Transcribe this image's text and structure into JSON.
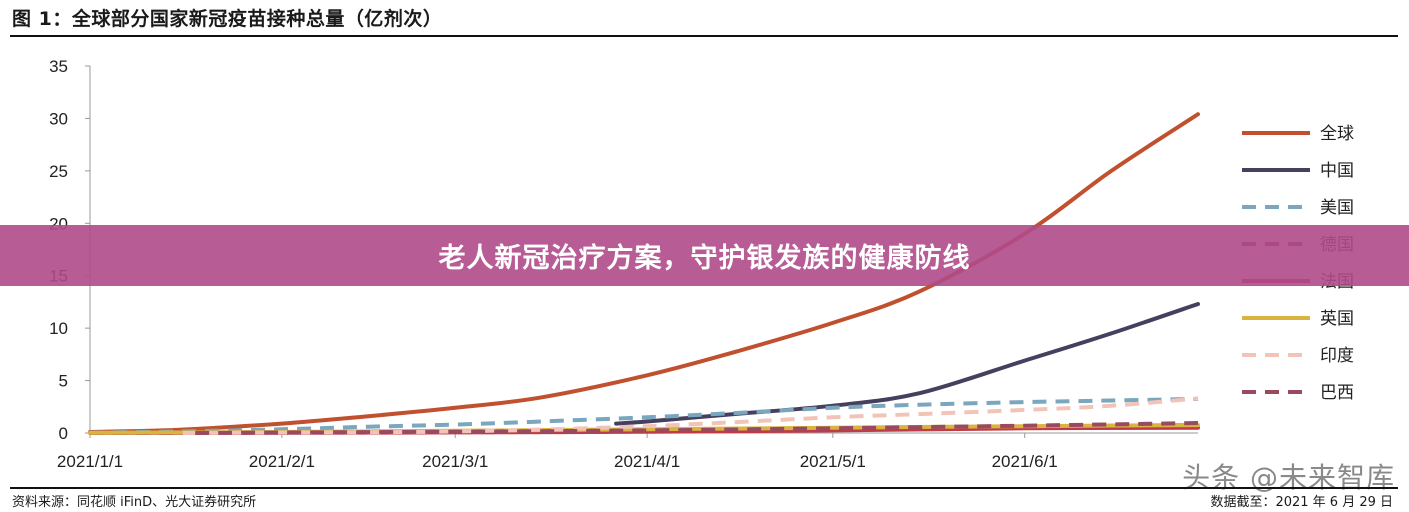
{
  "title": "图 1：全球部分国家新冠疫苗接种总量（亿剂次）",
  "banner": "老人新冠治疗方案，守护银发族的健康防线",
  "source": "资料来源：同花顺 iFinD、光大证券研究所",
  "data_date": "数据截至：2021 年 6 月 29 日",
  "watermark": "头条 @未来智库",
  "chart_data": {
    "type": "line",
    "title": "图 1：全球部分国家新冠疫苗接种总量（亿剂次）",
    "xlabel": "",
    "ylabel": "",
    "ylim": [
      0,
      35
    ],
    "yticks": [
      "0",
      "5",
      "10",
      "15",
      "20",
      "25",
      "30",
      "35"
    ],
    "xlim": [
      "2021-01-01",
      "2021-06-29"
    ],
    "xticks": [
      {
        "label": "2021/1/1",
        "date": "2021-01-01"
      },
      {
        "label": "2021/2/1",
        "date": "2021-02-01"
      },
      {
        "label": "2021/3/1",
        "date": "2021-03-01"
      },
      {
        "label": "2021/4/1",
        "date": "2021-04-01"
      },
      {
        "label": "2021/5/1",
        "date": "2021-05-01"
      },
      {
        "label": "2021/6/1",
        "date": "2021-06-01"
      }
    ],
    "grid": false,
    "legend_position": "right",
    "series": [
      {
        "name": "全球",
        "color": "#c0502e",
        "style": "solid",
        "points": [
          [
            "2021-01-01",
            0.1
          ],
          [
            "2021-01-15",
            0.3
          ],
          [
            "2021-02-01",
            0.9
          ],
          [
            "2021-02-15",
            1.6
          ],
          [
            "2021-03-01",
            2.4
          ],
          [
            "2021-03-15",
            3.4
          ],
          [
            "2021-04-01",
            5.5
          ],
          [
            "2021-04-15",
            7.7
          ],
          [
            "2021-05-01",
            10.5
          ],
          [
            "2021-05-15",
            13.5
          ],
          [
            "2021-06-01",
            19.0
          ],
          [
            "2021-06-15",
            25.0
          ],
          [
            "2021-06-29",
            30.4
          ]
        ]
      },
      {
        "name": "中国",
        "color": "#46405e",
        "style": "solid",
        "points": [
          [
            "2021-03-27",
            0.9
          ],
          [
            "2021-04-01",
            1.1
          ],
          [
            "2021-04-15",
            1.8
          ],
          [
            "2021-05-01",
            2.6
          ],
          [
            "2021-05-15",
            3.8
          ],
          [
            "2021-06-01",
            6.9
          ],
          [
            "2021-06-15",
            9.5
          ],
          [
            "2021-06-29",
            12.3
          ]
        ]
      },
      {
        "name": "美国",
        "color": "#7aa6be",
        "style": "dashed",
        "points": [
          [
            "2021-01-01",
            0.05
          ],
          [
            "2021-01-15",
            0.15
          ],
          [
            "2021-02-01",
            0.35
          ],
          [
            "2021-02-15",
            0.6
          ],
          [
            "2021-03-01",
            0.8
          ],
          [
            "2021-03-15",
            1.1
          ],
          [
            "2021-04-01",
            1.5
          ],
          [
            "2021-04-15",
            1.9
          ],
          [
            "2021-05-01",
            2.4
          ],
          [
            "2021-05-15",
            2.7
          ],
          [
            "2021-06-01",
            2.95
          ],
          [
            "2021-06-15",
            3.1
          ],
          [
            "2021-06-29",
            3.25
          ]
        ]
      },
      {
        "name": "德国",
        "color": "#7b3a5e",
        "style": "dashed",
        "points": [
          [
            "2021-01-01",
            0.01
          ],
          [
            "2021-02-01",
            0.03
          ],
          [
            "2021-03-01",
            0.08
          ],
          [
            "2021-04-01",
            0.15
          ],
          [
            "2021-05-01",
            0.35
          ],
          [
            "2021-06-01",
            0.6
          ],
          [
            "2021-06-29",
            0.75
          ]
        ]
      },
      {
        "name": "法国",
        "color": "#c23a48",
        "style": "solid",
        "points": [
          [
            "2021-01-01",
            0.01
          ],
          [
            "2021-02-01",
            0.02
          ],
          [
            "2021-03-01",
            0.06
          ],
          [
            "2021-04-01",
            0.12
          ],
          [
            "2021-05-01",
            0.25
          ],
          [
            "2021-06-01",
            0.45
          ],
          [
            "2021-06-29",
            0.5
          ]
        ]
      },
      {
        "name": "英国",
        "color": "#d8b440",
        "style": "solid",
        "points": [
          [
            "2021-01-01",
            0.02
          ],
          [
            "2021-02-01",
            0.1
          ],
          [
            "2021-03-01",
            0.22
          ],
          [
            "2021-04-01",
            0.35
          ],
          [
            "2021-05-01",
            0.5
          ],
          [
            "2021-06-01",
            0.65
          ],
          [
            "2021-06-29",
            0.75
          ]
        ]
      },
      {
        "name": "印度",
        "color": "#f2c4b8",
        "style": "dashed",
        "points": [
          [
            "2021-01-16",
            0.0
          ],
          [
            "2021-02-01",
            0.04
          ],
          [
            "2021-03-01",
            0.15
          ],
          [
            "2021-04-01",
            0.65
          ],
          [
            "2021-05-01",
            1.5
          ],
          [
            "2021-05-15",
            1.8
          ],
          [
            "2021-06-01",
            2.2
          ],
          [
            "2021-06-15",
            2.6
          ],
          [
            "2021-06-29",
            3.3
          ]
        ]
      },
      {
        "name": "巴西",
        "color": "#9a4a5e",
        "style": "dashed",
        "points": [
          [
            "2021-01-18",
            0.0
          ],
          [
            "2021-02-01",
            0.05
          ],
          [
            "2021-03-01",
            0.12
          ],
          [
            "2021-04-01",
            0.25
          ],
          [
            "2021-05-01",
            0.45
          ],
          [
            "2021-06-01",
            0.7
          ],
          [
            "2021-06-29",
            0.95
          ]
        ]
      }
    ]
  }
}
